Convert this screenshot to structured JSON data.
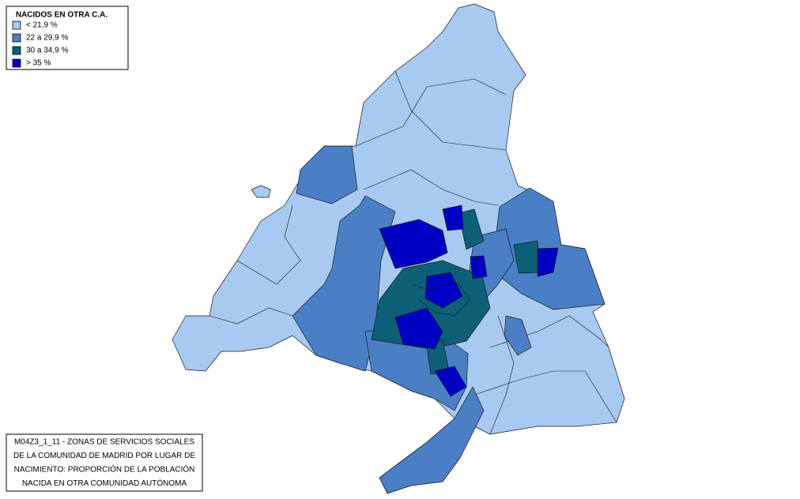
{
  "legend": {
    "title": "NACIDOS EN OTRA C.A.",
    "items": [
      {
        "label": "< 21,9 %",
        "color": "#a8c9f1"
      },
      {
        "label": "22 a 29,9 %",
        "color": "#4a7fc6"
      },
      {
        "label": "30 a 34,9 %",
        "color": "#0d5f78"
      },
      {
        "label": "> 35 %",
        "color": "#0000c4"
      }
    ]
  },
  "caption": {
    "lines": [
      "M04Z3_1_11 - ZONAS DE SERVICIOS SOCIALES",
      "DE LA COMUNIDAD DE MADRID POR LUGAR DE",
      "NACIMIENTO: PROPORCIÓN DE LA POBLACIÓN",
      "NACIDA EN OTRA COMUNIDAD AUTÓNOMA"
    ]
  }
}
